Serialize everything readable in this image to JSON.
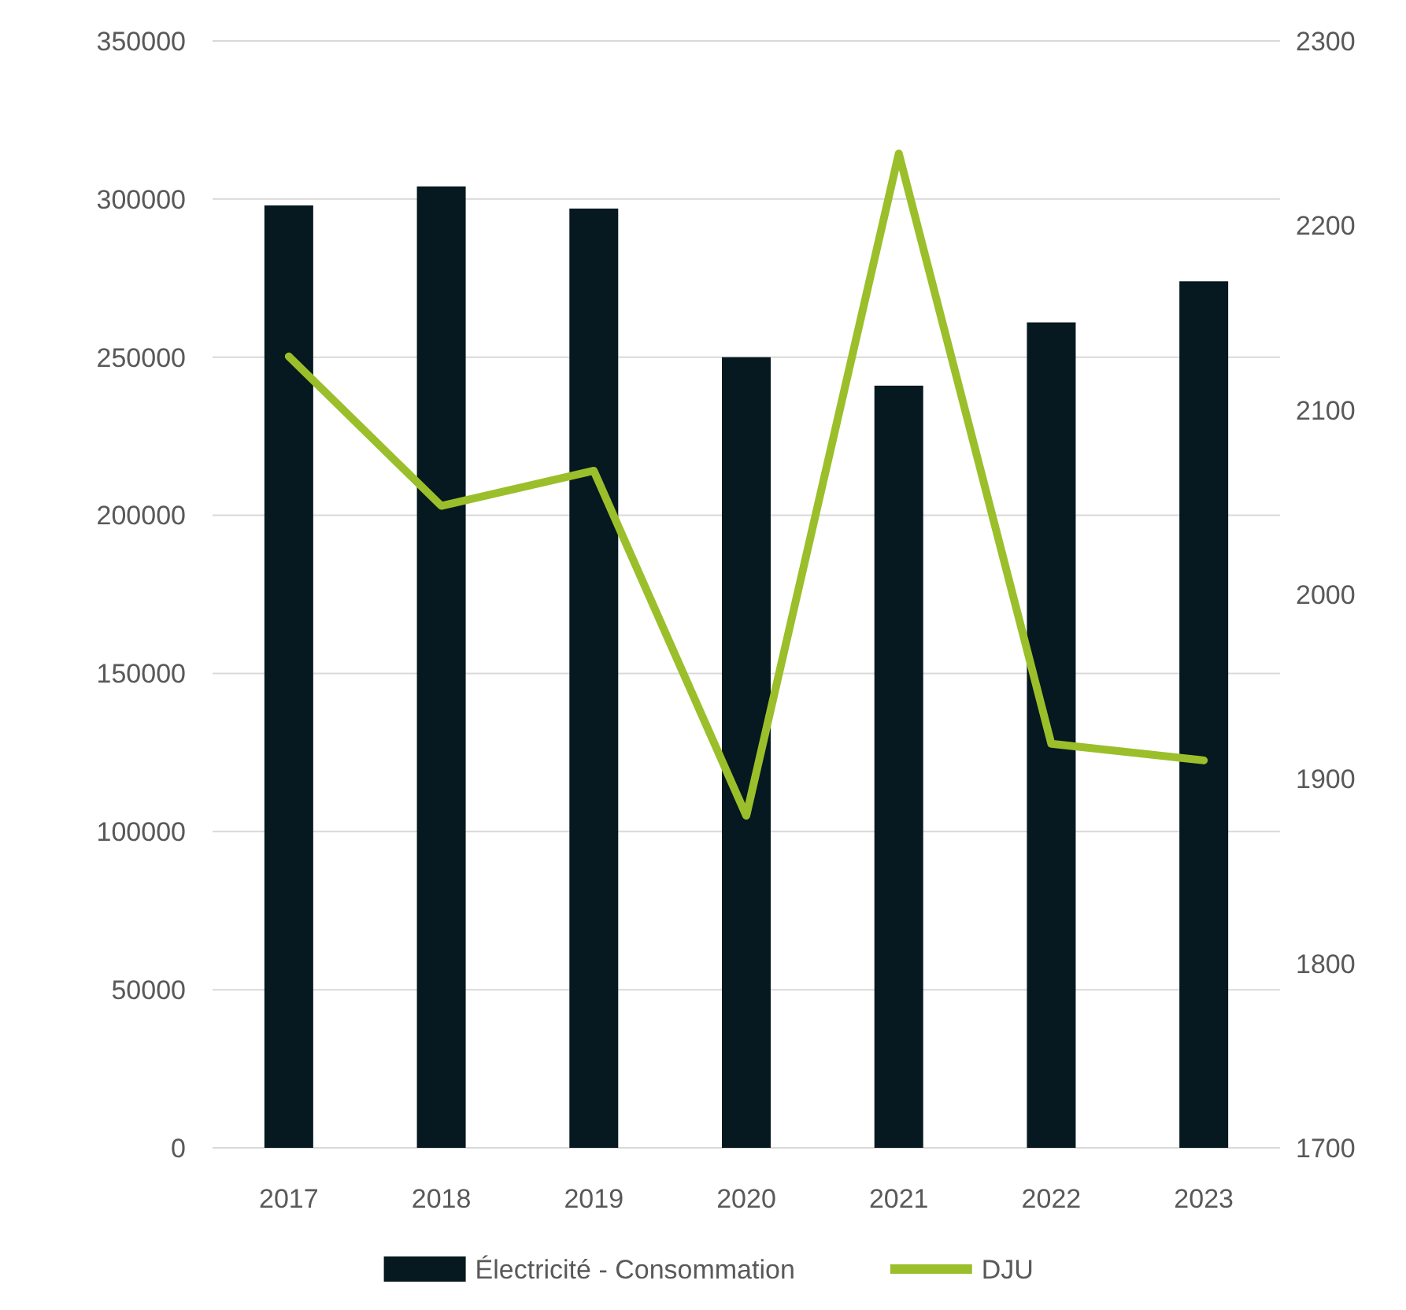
{
  "chart_data": {
    "type": "bar",
    "categories": [
      "2017",
      "2018",
      "2019",
      "2020",
      "2021",
      "2022",
      "2023"
    ],
    "series": [
      {
        "name": "Électricité - Consommation",
        "color": "#061820",
        "values": [
          298000,
          304000,
          297000,
          250000,
          241000,
          261000,
          274000
        ]
      },
      {
        "name": "DJU",
        "type": "line",
        "axis": "y2",
        "color": "#9bbf2a",
        "values": [
          2129,
          2048,
          2067,
          1880,
          2239,
          1919,
          1910
        ]
      }
    ],
    "ylim": [
      0,
      350000
    ],
    "yticks": [
      0,
      50000,
      100000,
      150000,
      200000,
      250000,
      300000,
      350000
    ],
    "y2lim": [
      1700,
      2300
    ],
    "y2ticks": [
      1700,
      1800,
      1900,
      2000,
      2100,
      2200,
      2300
    ],
    "grid": "y",
    "legend": "bottom",
    "marker": "none",
    "line_style": "solid"
  }
}
